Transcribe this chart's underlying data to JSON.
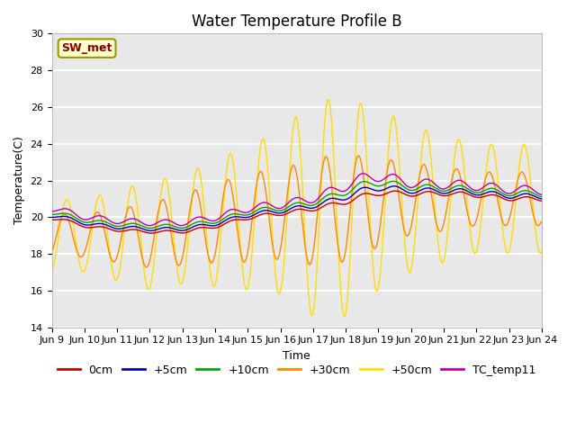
{
  "title": "Water Temperature Profile B",
  "xlabel": "Time",
  "ylabel": "Temperature(C)",
  "ylim": [
    14,
    30
  ],
  "ytick_values": [
    14,
    16,
    18,
    20,
    22,
    24,
    26,
    28,
    30
  ],
  "xtick_labels": [
    "Jun 9",
    "Jun 10",
    "Jun 11",
    "Jun 12",
    "Jun 13",
    "Jun 14",
    "Jun 15",
    "Jun 16",
    "Jun 17",
    "Jun 18",
    "Jun 19",
    "Jun 20",
    "Jun 21",
    "Jun 22",
    "Jun 23",
    "Jun 24"
  ],
  "colors": {
    "0cm": "#cc0000",
    "+5cm": "#0000cc",
    "+10cm": "#00aa00",
    "+30cm": "#ff8800",
    "+50cm": "#ffdd00",
    "TC_temp11": "#bb00bb"
  },
  "legend_label": "SW_met",
  "fig_bg": "#ffffff",
  "plot_bg": "#e8e8e8",
  "grid_color": "#ffffff",
  "title_fontsize": 12,
  "axis_fontsize": 9,
  "tick_fontsize": 8,
  "legend_fontsize": 9
}
